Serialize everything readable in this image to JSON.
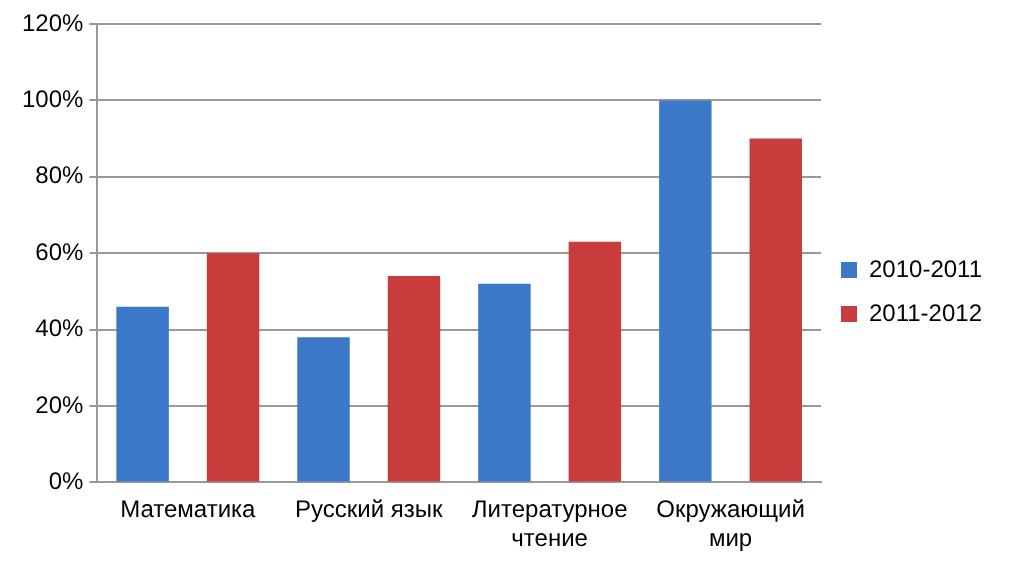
{
  "chart_data": {
    "type": "bar",
    "categories": [
      "Математика",
      "Русский язык",
      "Литературное чтение",
      "Окружающий мир"
    ],
    "series": [
      {
        "name": "2010-2011",
        "color": "#3c78c8",
        "values": [
          46,
          38,
          52,
          100
        ]
      },
      {
        "name": "2011-2012",
        "color": "#c83c3c",
        "values": [
          60,
          54,
          63,
          90
        ]
      }
    ],
    "ylim": [
      0,
      120
    ],
    "yticks": [
      {
        "value": 0,
        "label": "0%"
      },
      {
        "value": 20,
        "label": "20%"
      },
      {
        "value": 40,
        "label": "40%"
      },
      {
        "value": 60,
        "label": "60%"
      },
      {
        "value": 80,
        "label": "80%"
      },
      {
        "value": 100,
        "label": "100%"
      },
      {
        "value": 120,
        "label": "120%"
      }
    ],
    "grid": "y",
    "legend": "right"
  }
}
